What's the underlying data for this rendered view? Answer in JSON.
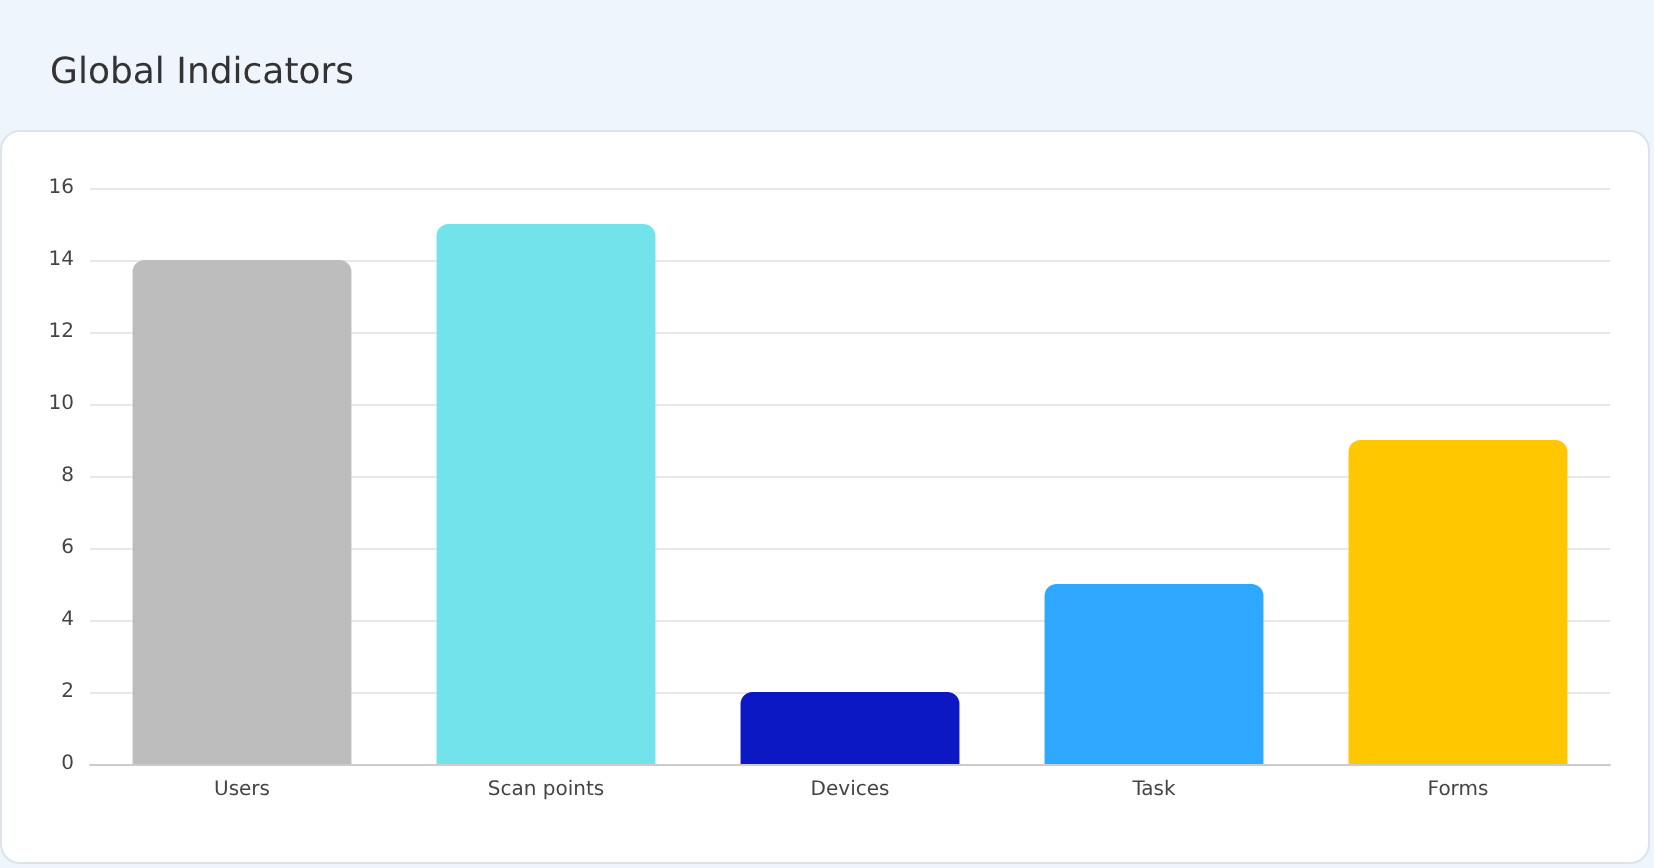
{
  "chart_data": {
    "type": "bar",
    "title": "Global Indicators",
    "categories": [
      "Users",
      "Scan points",
      "Devices",
      "Task",
      "Forms"
    ],
    "values": [
      14,
      15,
      2,
      5,
      9
    ],
    "colors": [
      "#bdbdbd",
      "#73e3eb",
      "#0b18c4",
      "#2ea8ff",
      "#ffc700"
    ],
    "ylim": [
      0,
      16
    ],
    "yticks": [
      0,
      2,
      4,
      6,
      8,
      10,
      12,
      14,
      16
    ],
    "grid": "y"
  }
}
